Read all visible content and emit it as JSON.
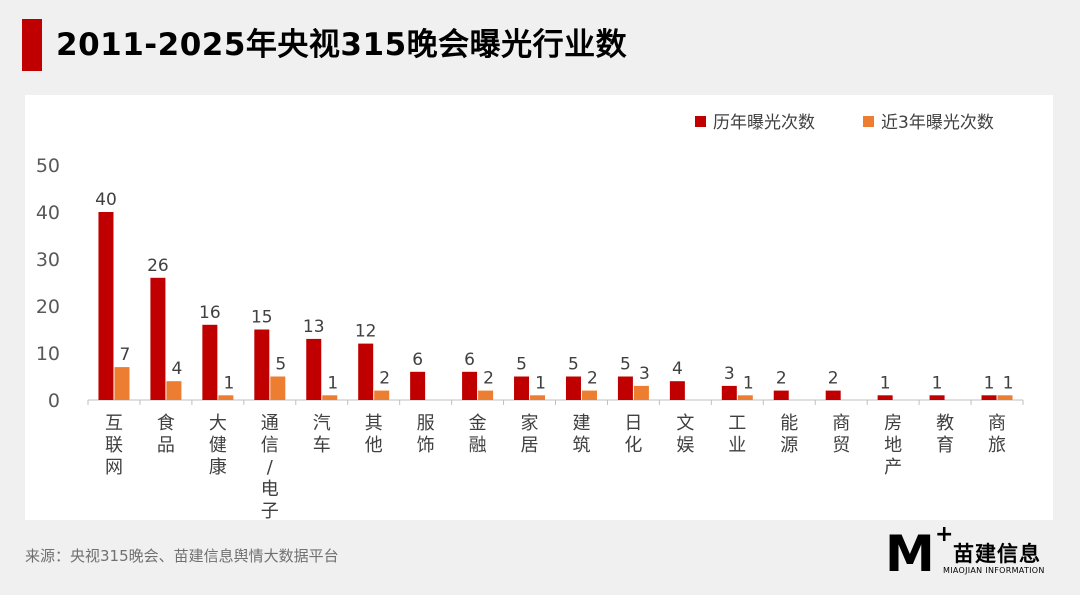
{
  "header": {
    "title": "2011-2025年央视315晚会曝光行业数"
  },
  "footer": {
    "source": "来源：央视315晚会、苗建信息舆情大数据平台"
  },
  "brand": {
    "mark": "M",
    "plus": "+",
    "name_cn": "苗建信息",
    "name_en": "MIAOJIAN INFORMATION"
  },
  "colors": {
    "accent": "#c00000",
    "series_all": "#c00000",
    "series_recent": "#ed7d31"
  },
  "chart_data": {
    "type": "bar",
    "title": "",
    "xlabel": "",
    "ylabel": "",
    "ylim": [
      0,
      50
    ],
    "yticks": [
      0,
      10,
      20,
      30,
      40,
      50
    ],
    "grid": false,
    "legend_position": "top-right",
    "categories": [
      "互联网",
      "食品",
      "大健康",
      "通信/电子",
      "汽车",
      "其他",
      "服饰",
      "金融",
      "家居",
      "建筑",
      "日化",
      "文娱",
      "工业",
      "能源",
      "商贸",
      "房地产",
      "教育",
      "商旅"
    ],
    "series": [
      {
        "name": "历年曝光次数",
        "color": "#c00000",
        "values": [
          40,
          26,
          16,
          15,
          13,
          12,
          6,
          6,
          5,
          5,
          5,
          4,
          3,
          2,
          2,
          1,
          1,
          1
        ]
      },
      {
        "name": "近3年曝光次数",
        "color": "#ed7d31",
        "values": [
          7,
          4,
          1,
          5,
          1,
          2,
          null,
          2,
          1,
          2,
          3,
          null,
          1,
          null,
          null,
          null,
          null,
          1
        ]
      }
    ]
  }
}
